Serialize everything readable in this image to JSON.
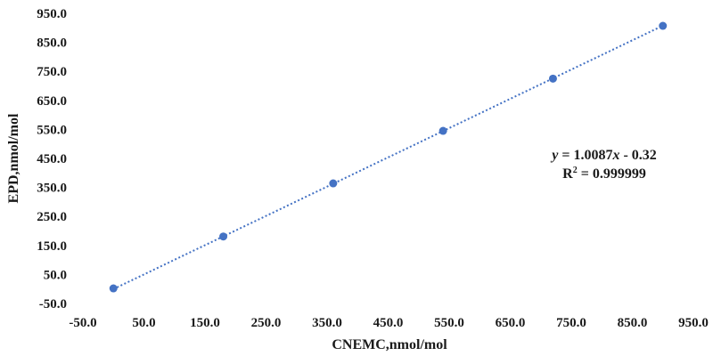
{
  "chart_data": {
    "type": "scatter",
    "xlabel": "CNEMC,nmol/mol",
    "ylabel": "EPD,nmol/mol",
    "xlim": [
      -50,
      950
    ],
    "ylim": [
      -50,
      950
    ],
    "x_ticks": [
      "-50.0",
      "50.0",
      "150.0",
      "250.0",
      "350.0",
      "450.0",
      "550.0",
      "650.0",
      "750.0",
      "850.0",
      "950.0"
    ],
    "y_ticks": [
      "-50.0",
      "50.0",
      "150.0",
      "250.0",
      "350.0",
      "450.0",
      "550.0",
      "650.0",
      "750.0",
      "850.0",
      "950.0"
    ],
    "series": [
      {
        "points": [
          {
            "x": 0,
            "y": 2
          },
          {
            "x": 180,
            "y": 181
          },
          {
            "x": 360,
            "y": 364
          },
          {
            "x": 540,
            "y": 545
          },
          {
            "x": 720,
            "y": 725
          },
          {
            "x": 900,
            "y": 907
          }
        ],
        "color": "#4472c4"
      }
    ],
    "trendline": {
      "type": "linear",
      "slope": 1.0087,
      "intercept": -0.32,
      "style": "dotted",
      "color": "#4472c4"
    },
    "equation": {
      "y_var": "y",
      "eq_rest": " = 1.0087",
      "x_var": "x",
      "eq_tail": " - 0.32",
      "r2_base": "R",
      "r2_sup": "2",
      "r2_rest": " = 0.999999"
    },
    "grid": false,
    "legend": "none"
  }
}
